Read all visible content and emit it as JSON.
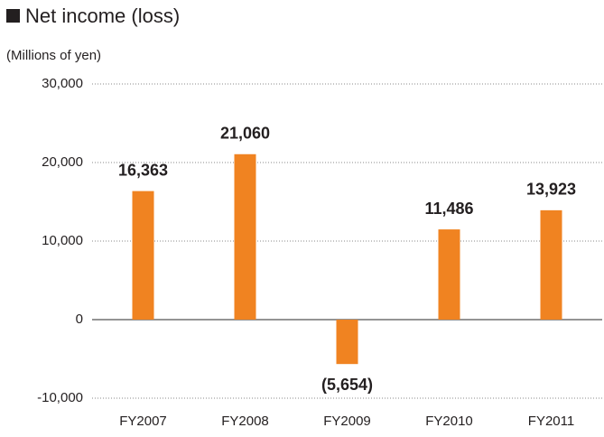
{
  "chart_data": {
    "type": "bar",
    "title": "Net income (loss)",
    "y_axis_label": "(Millions of yen)",
    "categories": [
      "FY2007",
      "FY2008",
      "FY2009",
      "FY2010",
      "FY2011"
    ],
    "values": [
      16363,
      21060,
      -5654,
      11486,
      13923
    ],
    "value_labels": [
      "16,363",
      "21,060",
      "(5,654)",
      "11,486",
      "13,923"
    ],
    "color": "#f08321",
    "ylim": [
      -10000,
      30000
    ],
    "yticks": [
      {
        "value": -10000,
        "label": "-10,000"
      },
      0,
      {
        "value": 10000,
        "label": "10,000"
      },
      {
        "value": 20000,
        "label": "20,000"
      },
      {
        "value": 30000,
        "label": "30,000"
      }
    ],
    "grid": true
  }
}
